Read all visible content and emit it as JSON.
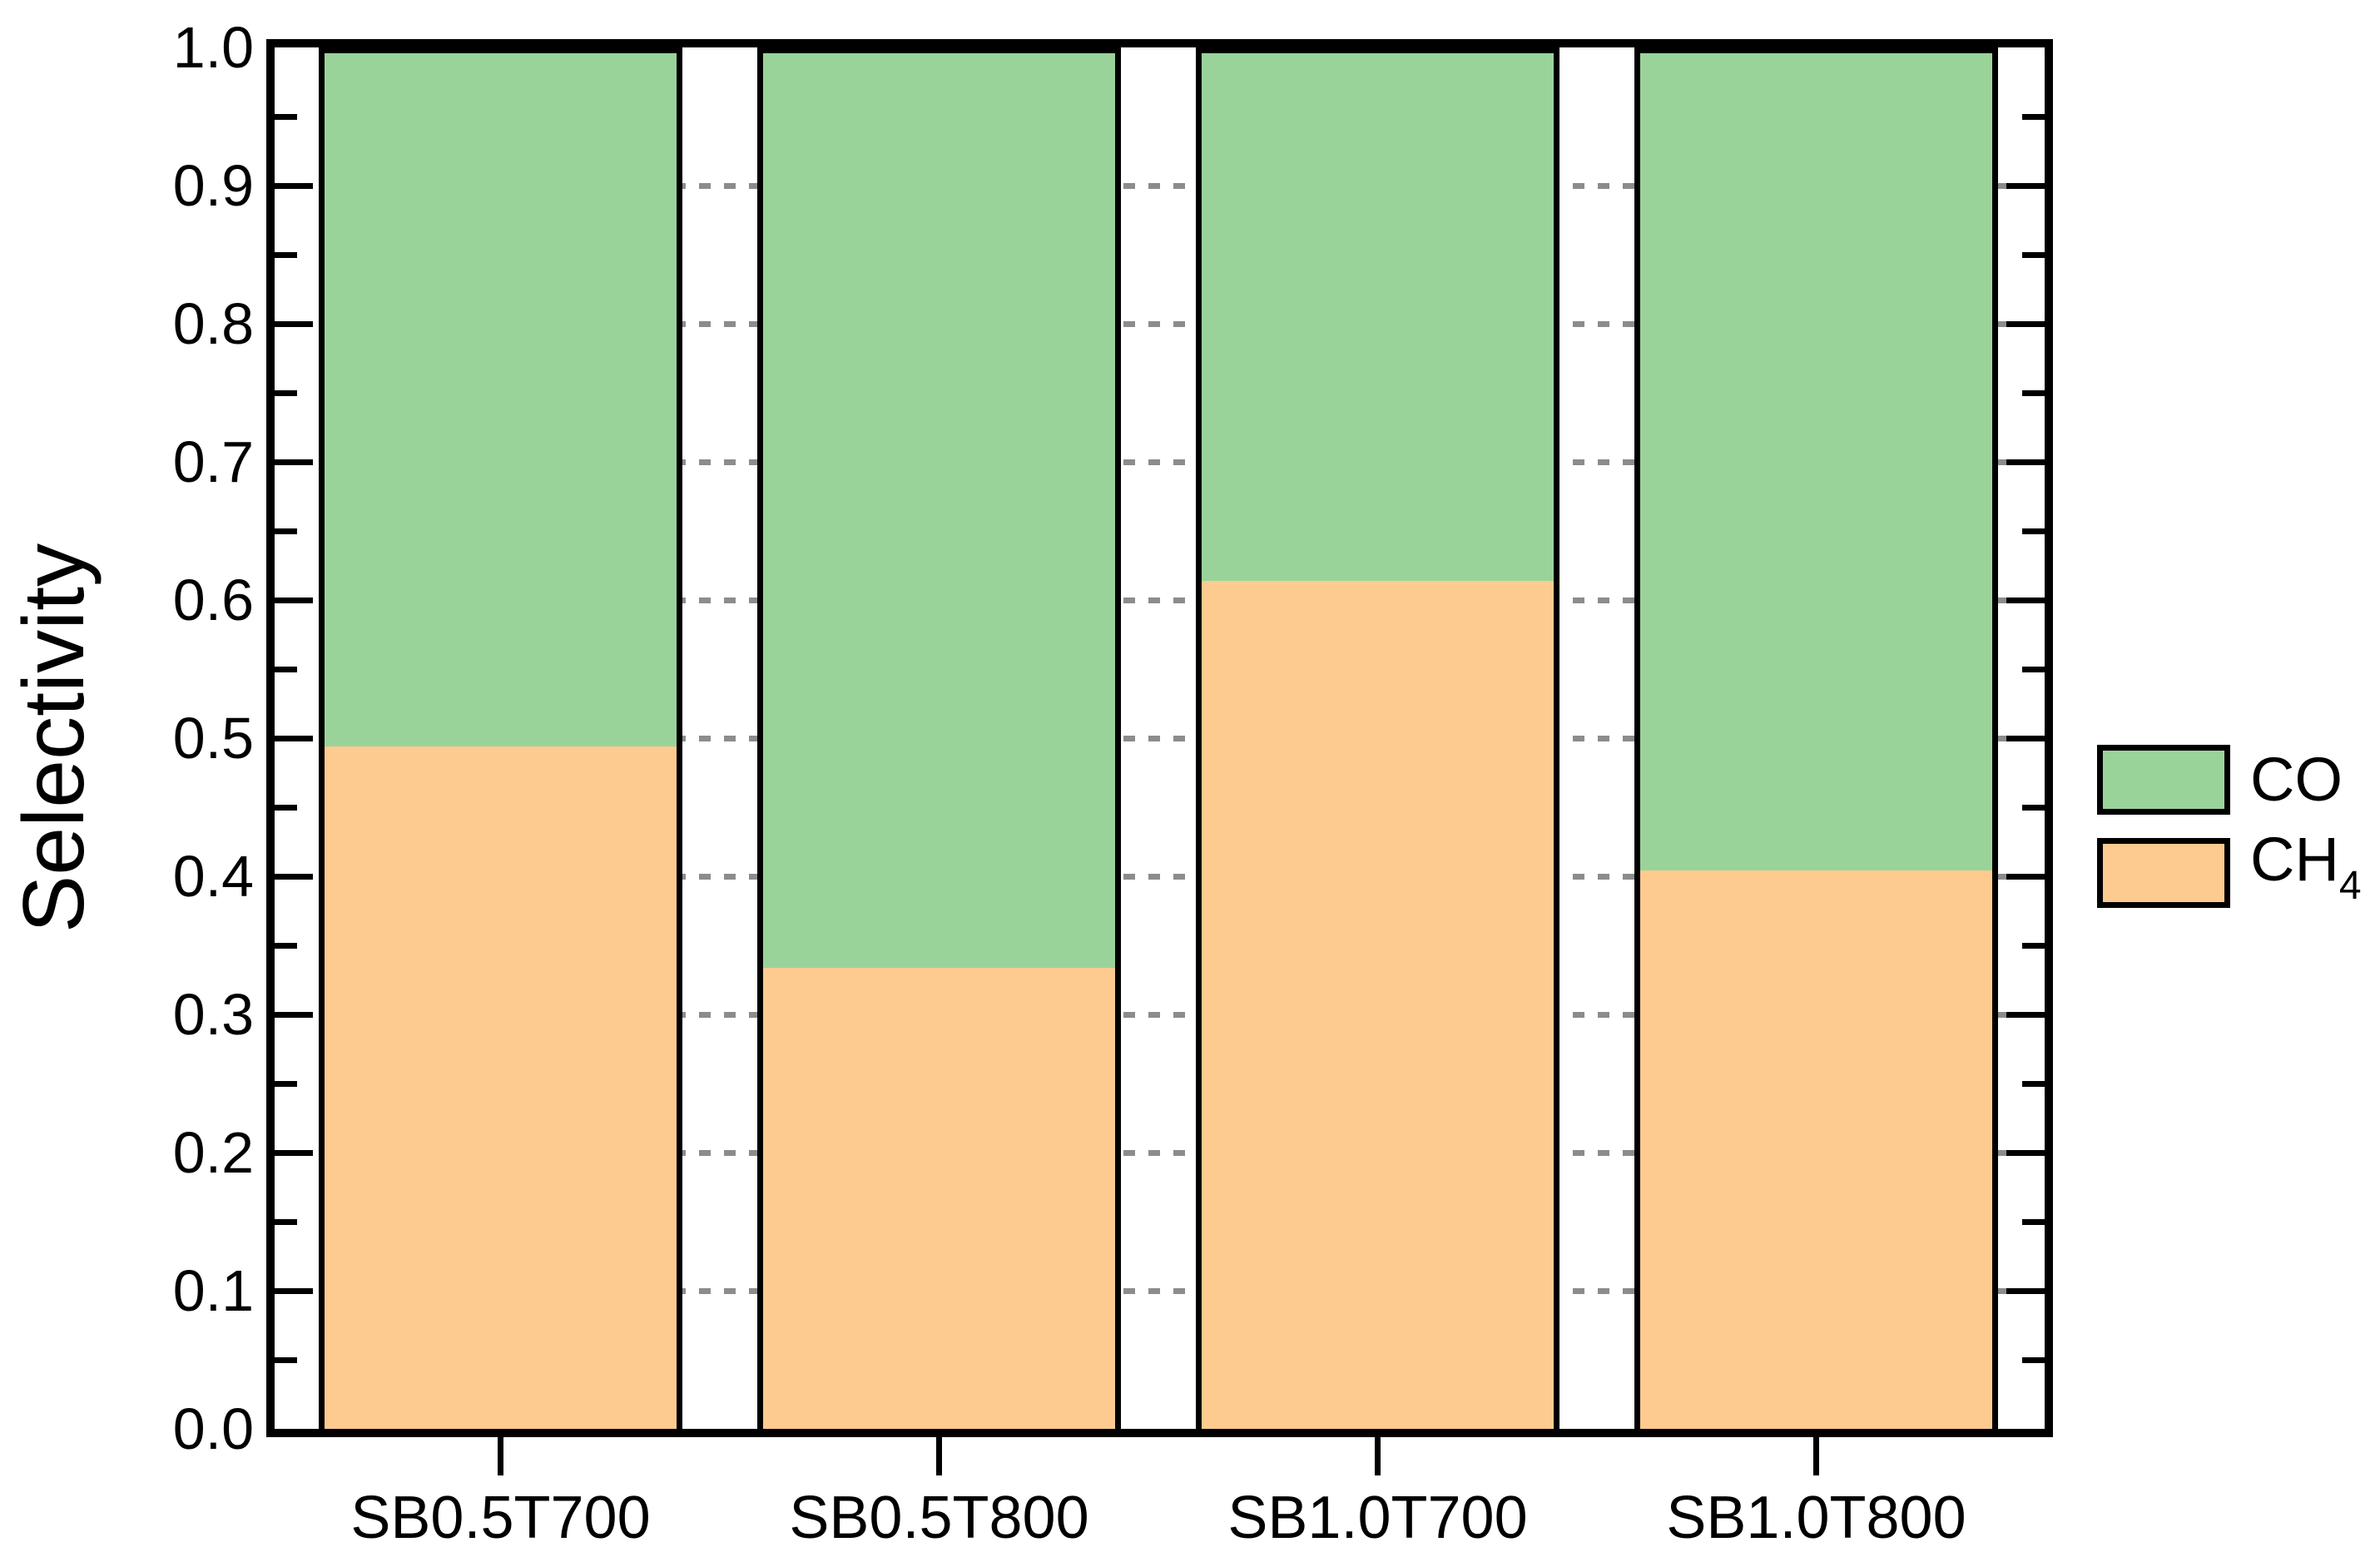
{
  "chart_data": {
    "type": "bar",
    "stacked": true,
    "title": "",
    "xlabel": "",
    "ylabel": "Selectivity",
    "ylim": [
      0.0,
      1.0
    ],
    "ytick_major_step": 0.1,
    "ytick_minor_step": 0.05,
    "ytick_labels": [
      "0.0",
      "0.1",
      "0.2",
      "0.3",
      "0.4",
      "0.5",
      "0.6",
      "0.7",
      "0.8",
      "0.9",
      "1.0"
    ],
    "categories": [
      "SB0.5T700",
      "SB0.5T800",
      "SB1.0T700",
      "SB1.0T800"
    ],
    "series": [
      {
        "name": "CH4",
        "label_text": "CH",
        "label_sub": "4",
        "color": "#FDCB8F",
        "values": [
          0.5,
          0.34,
          0.62,
          0.41
        ]
      },
      {
        "name": "CO",
        "label_text": "CO",
        "label_sub": "",
        "color": "#9AD39A",
        "values": [
          0.5,
          0.66,
          0.38,
          0.59
        ]
      }
    ],
    "legend": {
      "position": "right",
      "order_top_to_bottom": [
        "CO",
        "CH4"
      ]
    },
    "grid": {
      "show": true,
      "color": "#8C8C8C",
      "style": "dashed",
      "on_major_ticks": true
    },
    "axis_color": "#000000",
    "bar_edge_color": "#000000",
    "background": "#FFFFFF"
  }
}
